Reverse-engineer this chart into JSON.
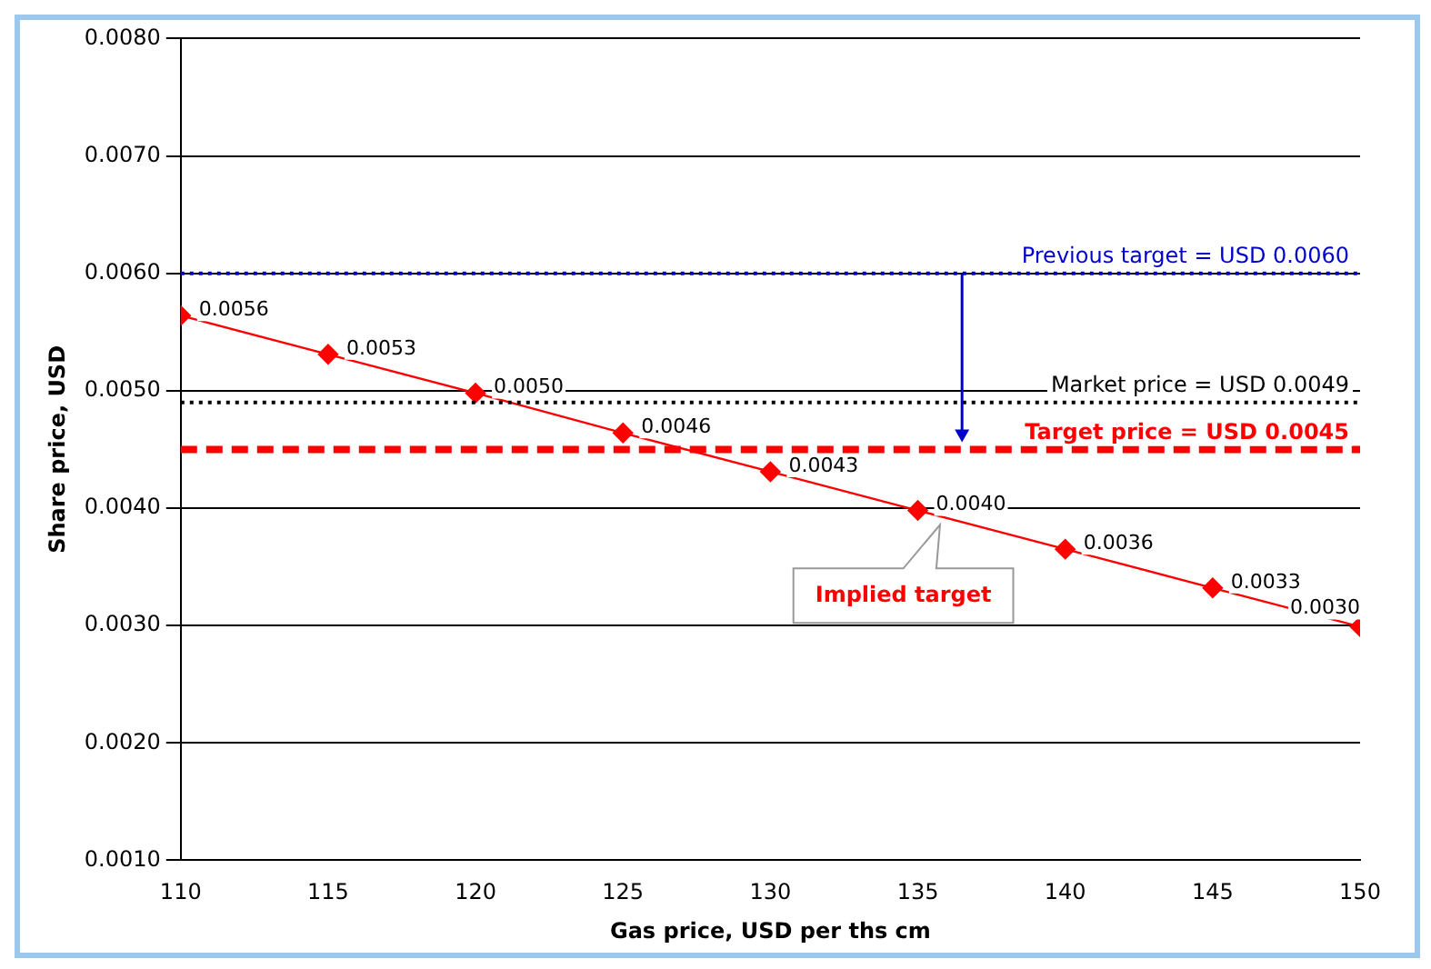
{
  "chart_data": {
    "type": "line",
    "xlabel": "Gas price, USD per ths cm",
    "ylabel": "Share price, USD",
    "x": [
      110,
      115,
      120,
      125,
      130,
      135,
      140,
      145,
      150
    ],
    "series": [
      {
        "color": "#ff0000",
        "values": [
          0.00564,
          0.00531,
          0.00498,
          0.00464,
          0.00431,
          0.00398,
          0.00365,
          0.00332,
          0.00299
        ],
        "value_labels": [
          "0.0056",
          "0.0053",
          "0.0050",
          "0.0046",
          "0.0043",
          "0.0040",
          "0.0036",
          "0.0033",
          "0.0030"
        ]
      }
    ],
    "marker": "diamond",
    "line_style": "solid",
    "xlim": [
      110,
      150
    ],
    "xticks": [
      110,
      115,
      120,
      125,
      130,
      135,
      140,
      145,
      150
    ],
    "ylim": [
      0.001,
      0.008
    ],
    "yticks": [
      {
        "value": 0.001,
        "label": "0.0010"
      },
      {
        "value": 0.002,
        "label": "0.0020"
      },
      {
        "value": 0.003,
        "label": "0.0030"
      },
      {
        "value": 0.004,
        "label": "0.0040"
      },
      {
        "value": 0.005,
        "label": "0.0050"
      },
      {
        "value": 0.006,
        "label": "0.0060"
      },
      {
        "value": 0.007,
        "label": "0.0070"
      },
      {
        "value": 0.008,
        "label": "0.0080"
      }
    ],
    "grid": "y",
    "legend": false,
    "ref_lines": [
      {
        "axis": "y",
        "value": 0.006,
        "label": "Previous target = USD 0.0060",
        "color": "#0000cc",
        "line_style": "dotted"
      },
      {
        "axis": "y",
        "value": 0.0049,
        "label": "Market price = USD 0.0049",
        "color": "#000000",
        "line_style": "dotted"
      },
      {
        "axis": "y",
        "value": 0.0045,
        "label": "Target price = USD 0.0045",
        "color": "#ff0000",
        "line_style": "dashed"
      }
    ],
    "annotations": [
      {
        "text": "Implied target",
        "x": 136,
        "y": 0.00392
      }
    ]
  }
}
